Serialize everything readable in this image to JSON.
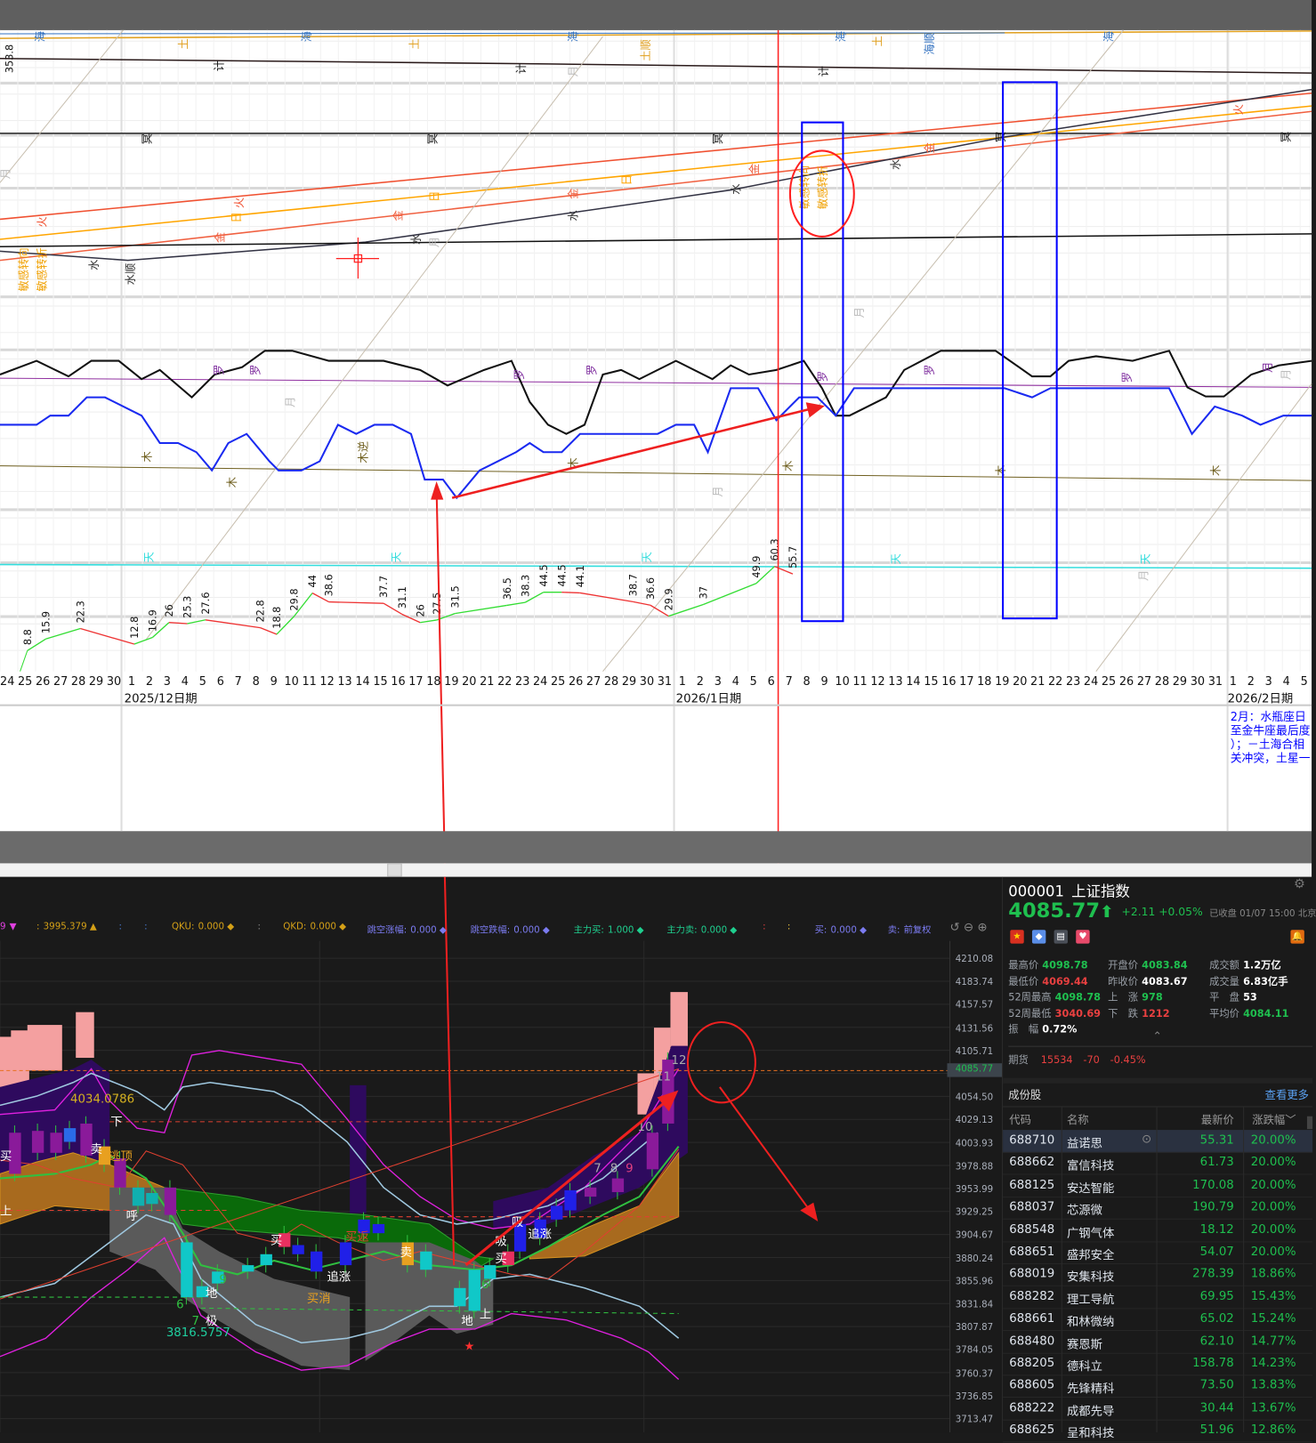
{
  "astro_chart": {
    "dates": [
      "24",
      "25",
      "26",
      "27",
      "28",
      "29",
      "30",
      "1",
      "2",
      "3",
      "4",
      "5",
      "6",
      "7",
      "8",
      "9",
      "10",
      "11",
      "12",
      "13",
      "14",
      "15",
      "16",
      "17",
      "18",
      "19",
      "20",
      "21",
      "22",
      "23",
      "24",
      "25",
      "26",
      "27",
      "28",
      "29",
      "30",
      "31",
      "1",
      "2",
      "3",
      "4",
      "5",
      "6",
      "7",
      "8",
      "9",
      "10",
      "11",
      "12",
      "13",
      "14",
      "15",
      "16",
      "17",
      "18",
      "19",
      "20",
      "21",
      "22",
      "23",
      "24",
      "25",
      "26",
      "27",
      "28",
      "29",
      "30",
      "31",
      "1",
      "2",
      "3",
      "4",
      "5"
    ],
    "month_labels": [
      "2025/12日期",
      "2026/1日期",
      "2026/2日期"
    ],
    "left_value": "353.8",
    "value_labels": [
      "8.8",
      "15.9",
      "22.3",
      "12.8",
      "16.9",
      "26",
      "25.3",
      "27.6",
      "22.8",
      "18.8",
      "29.8",
      "44",
      "38.6",
      "37.7",
      "31.1",
      "26",
      "27.5",
      "31.5",
      "36.5",
      "38.3",
      "44.5",
      "44.5",
      "44.1",
      "38.7",
      "36.6",
      "29.9",
      "37",
      "49.9",
      "60.3",
      "55.7"
    ],
    "glyphs": [
      "海",
      "土",
      "海",
      "土",
      "海",
      "月",
      "土顺",
      "海",
      "土",
      "海顺",
      "海",
      "计",
      "计",
      "计",
      "冥",
      "冥",
      "冥",
      "冥",
      "冥",
      "月",
      "火",
      "日",
      "金",
      "日",
      "火",
      "金",
      "月",
      "水",
      "金",
      "水",
      "水",
      "火",
      "金",
      "日",
      "金",
      "水",
      "木",
      "水",
      "水顺",
      "敏感转向",
      "敏感转折",
      "木",
      "月",
      "月",
      "木",
      "木逆",
      "木",
      "木",
      "月",
      "木",
      "天",
      "天",
      "天",
      "天",
      "天",
      "罗",
      "罗",
      "罗",
      "罗",
      "罗",
      "罗",
      "罗",
      "月",
      "月",
      "敏感转向",
      "敏感转折",
      "月"
    ],
    "note_lines": [
      "2月：水瓶座日",
      "至金牛座最后度",
      "）；－土海合相",
      "关冲突，土星一"
    ],
    "colors": {
      "up": "#33dd33",
      "down": "#ee3333",
      "box": "#0000ff",
      "marker": "#ff0000",
      "note": "#0000ff"
    }
  },
  "kline": {
    "indicator_bar": [
      {
        "label": "9",
        "value": "▼",
        "color": "#e040e0"
      },
      {
        "label": ":",
        "value": "3995.379 ▲",
        "color": "#d4a017"
      },
      {
        "label": ":",
        "value": "",
        "color": "#4a7bd4"
      },
      {
        "label": ":",
        "value": "",
        "color": "#4a7bd4"
      },
      {
        "label": "QKU:",
        "value": "0.000 ◆",
        "color": "#d4a017"
      },
      {
        "label": ":",
        "value": "",
        "color": "#888888"
      },
      {
        "label": "QKD:",
        "value": "0.000 ◆",
        "color": "#d4a017"
      },
      {
        "label": "跳空涨幅:",
        "value": "0.000 ◆",
        "color": "#7b7bf0"
      },
      {
        "label": "跳空跌幅:",
        "value": "0.000 ◆",
        "color": "#7b7bf0"
      },
      {
        "label": "主力买:",
        "value": "1.000 ◆",
        "color": "#1fcf8f"
      },
      {
        "label": "主力卖:",
        "value": "0.000 ◆",
        "color": "#1fcf8f"
      },
      {
        "label": ":",
        "value": "",
        "color": "#e84040"
      },
      {
        "label": ":",
        "value": "",
        "color": "#e8c040"
      },
      {
        "label": "买:",
        "value": "0.000 ◆",
        "color": "#7b7bf0"
      },
      {
        "label": "卖:",
        "value": "前复权",
        "color": "#7b7bf0"
      }
    ],
    "price_axis": [
      "4210.08",
      "4183.74",
      "4157.57",
      "4131.56",
      "4105.71",
      "4054.50",
      "4029.13",
      "4003.93",
      "3978.88",
      "3953.99",
      "3929.25",
      "3904.67",
      "3880.24",
      "3855.96",
      "3831.84",
      "3807.87",
      "3784.05",
      "3760.37",
      "3736.85",
      "3713.47"
    ],
    "current_price_tag": "4085.77",
    "annotations": {
      "high": "4034.0786",
      "low": "3816.5757",
      "down": "下",
      "up": "上",
      "buy": "买",
      "sell": "卖",
      "escape": "逃顶",
      "hu": "呼",
      "di": "地",
      "ji": "极",
      "chase": "追涨",
      "buy2": "买消",
      "buy3": "买返",
      "absorb": "吸",
      "star": "★",
      "n6": "6",
      "n7": "7",
      "n9": "9",
      "n10": "10",
      "n11": "11",
      "n12": "12",
      "n8": "8"
    }
  },
  "quote": {
    "code": "000001",
    "name": "上证指数",
    "price": "4085.77",
    "arrow": "⬆",
    "change": "+2.11",
    "change_pct": "+0.05%",
    "status": "已收盘 01/07 15:00 北京",
    "stats": [
      {
        "label": "最高价",
        "value": "4098.78",
        "tone": "g"
      },
      {
        "label": "开盘价",
        "value": "4083.84",
        "tone": "g"
      },
      {
        "label": "成交额",
        "value": "1.2万亿",
        "tone": "w"
      },
      {
        "label": "最低价",
        "value": "4069.44",
        "tone": "r"
      },
      {
        "label": "昨收价",
        "value": "4083.67",
        "tone": "w"
      },
      {
        "label": "成交量",
        "value": "6.83亿手",
        "tone": "w"
      },
      {
        "label": "52周最高",
        "value": "4098.78",
        "tone": "g"
      },
      {
        "label": "上　涨",
        "value": "978",
        "tone": "g"
      },
      {
        "label": "平　盘",
        "value": "53",
        "tone": "w"
      },
      {
        "label": "52周最低",
        "value": "3040.69",
        "tone": "r"
      },
      {
        "label": "下　跌",
        "value": "1212",
        "tone": "r"
      },
      {
        "label": "平均价",
        "value": "4084.11",
        "tone": "g"
      },
      {
        "label": "振　幅",
        "value": "0.72%",
        "tone": "w"
      }
    ],
    "futures": {
      "label": "期货",
      "value": "15534",
      "change": "-70",
      "pct": "-0.45%"
    },
    "constituents": {
      "title": "成份股",
      "more": "查看更多",
      "headers": [
        "代码",
        "名称",
        "最新价",
        "涨跌幅"
      ],
      "rows": [
        [
          "688710",
          "益诺思",
          "55.31",
          "20.00%"
        ],
        [
          "688662",
          "富信科技",
          "61.73",
          "20.00%"
        ],
        [
          "688125",
          "安达智能",
          "170.08",
          "20.00%"
        ],
        [
          "688037",
          "芯源微",
          "190.79",
          "20.00%"
        ],
        [
          "688548",
          "广钢气体",
          "18.12",
          "20.00%"
        ],
        [
          "688651",
          "盛邦安全",
          "54.07",
          "20.00%"
        ],
        [
          "688019",
          "安集科技",
          "278.39",
          "18.86%"
        ],
        [
          "688282",
          "理工导航",
          "69.95",
          "15.43%"
        ],
        [
          "688661",
          "和林微纳",
          "65.02",
          "15.24%"
        ],
        [
          "688480",
          "赛恩斯",
          "62.10",
          "14.77%"
        ],
        [
          "688205",
          "德科立",
          "158.78",
          "14.23%"
        ],
        [
          "688605",
          "先锋精科",
          "73.50",
          "13.83%"
        ],
        [
          "688222",
          "成都先导",
          "30.44",
          "13.67%"
        ],
        [
          "688625",
          "呈和科技",
          "51.96",
          "12.86%"
        ]
      ]
    },
    "colors": {
      "up": "#1fbf4f",
      "down": "#e84040"
    }
  }
}
